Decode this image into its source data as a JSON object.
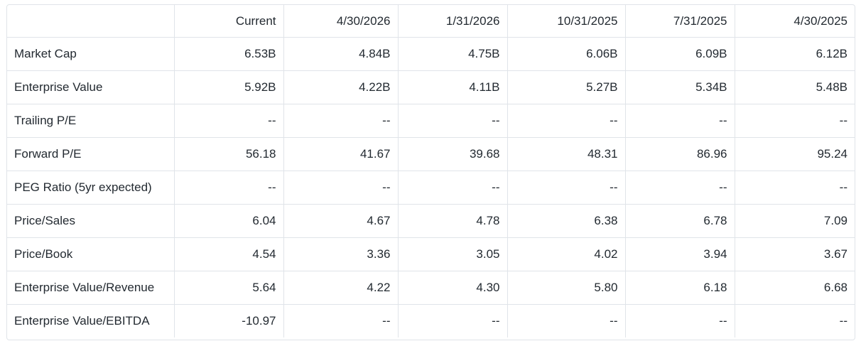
{
  "table": {
    "columns": [
      "",
      "Current",
      "4/30/2026",
      "1/31/2026",
      "10/31/2025",
      "7/31/2025",
      "4/30/2025"
    ],
    "rows": [
      {
        "label": "Market Cap",
        "values": [
          "6.53B",
          "4.84B",
          "4.75B",
          "6.06B",
          "6.09B",
          "6.12B"
        ]
      },
      {
        "label": "Enterprise Value",
        "values": [
          "5.92B",
          "4.22B",
          "4.11B",
          "5.27B",
          "5.34B",
          "5.48B"
        ]
      },
      {
        "label": "Trailing P/E",
        "values": [
          "--",
          "--",
          "--",
          "--",
          "--",
          "--"
        ]
      },
      {
        "label": "Forward P/E",
        "values": [
          "56.18",
          "41.67",
          "39.68",
          "48.31",
          "86.96",
          "95.24"
        ]
      },
      {
        "label": "PEG Ratio (5yr expected)",
        "values": [
          "--",
          "--",
          "--",
          "--",
          "--",
          "--"
        ]
      },
      {
        "label": "Price/Sales",
        "values": [
          "6.04",
          "4.67",
          "4.78",
          "6.38",
          "6.78",
          "7.09"
        ]
      },
      {
        "label": "Price/Book",
        "values": [
          "4.54",
          "3.36",
          "3.05",
          "4.02",
          "3.94",
          "3.67"
        ]
      },
      {
        "label": "Enterprise Value/Revenue",
        "values": [
          "5.64",
          "4.22",
          "4.30",
          "5.80",
          "6.18",
          "6.68"
        ]
      },
      {
        "label": "Enterprise Value/EBITDA",
        "values": [
          "-10.97",
          "--",
          "--",
          "--",
          "--",
          "--"
        ]
      }
    ]
  }
}
